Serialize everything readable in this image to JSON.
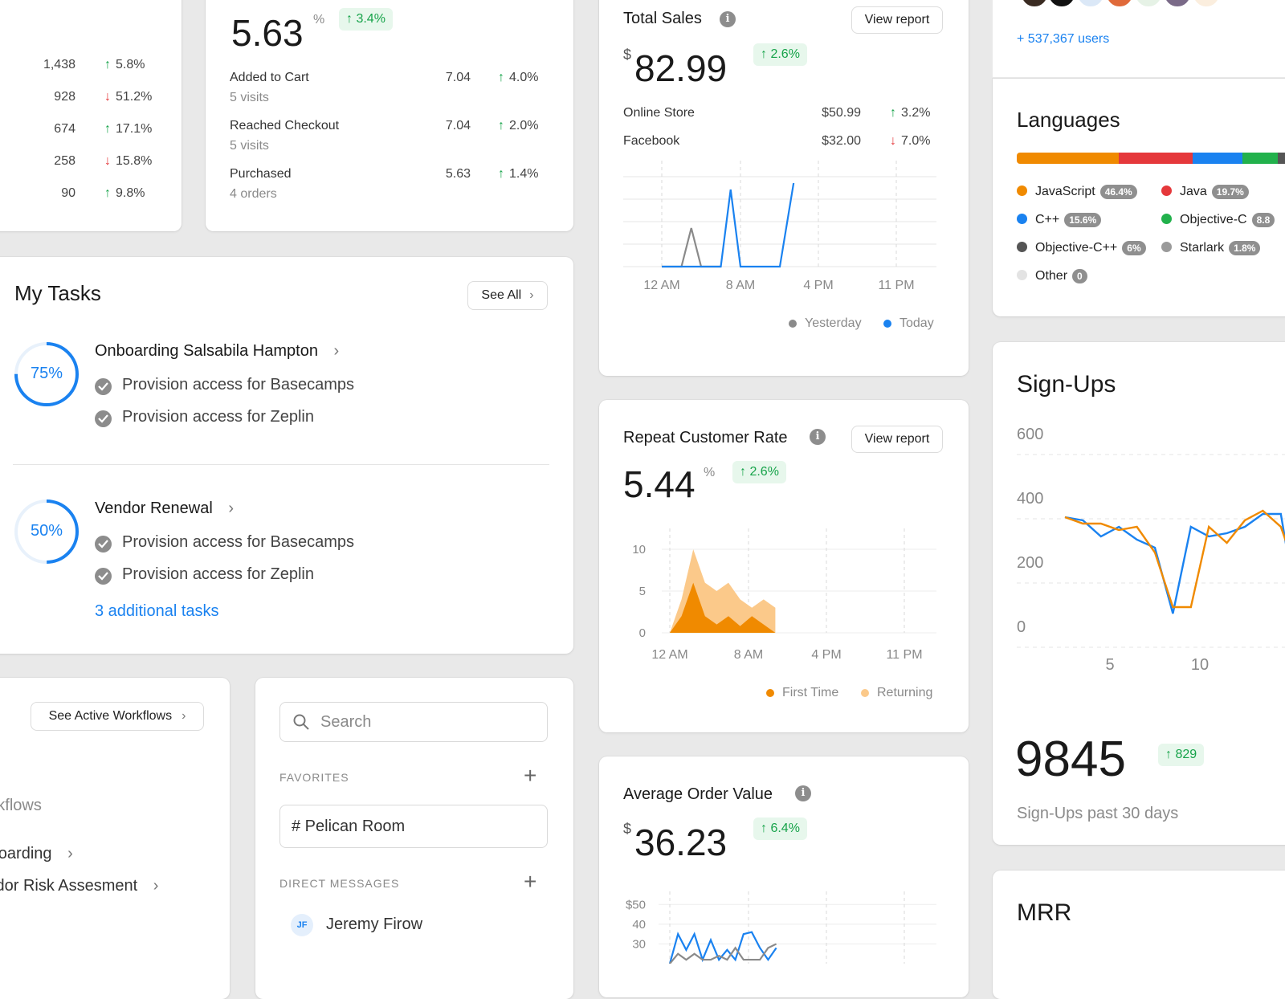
{
  "metrics_card": {
    "rows": [
      {
        "value": "1,438",
        "change": "5.8%",
        "dir": "up"
      },
      {
        "value": "928",
        "change": "51.2%",
        "dir": "down"
      },
      {
        "value": "674",
        "change": "17.1%",
        "dir": "up"
      },
      {
        "value": "258",
        "change": "15.8%",
        "dir": "down"
      },
      {
        "value": "90",
        "change": "9.8%",
        "dir": "up"
      }
    ]
  },
  "conversion_card": {
    "value": "5.63",
    "unit": "%",
    "change": "3.4%",
    "rows": [
      {
        "label": "Added to Cart",
        "sub": "5 visits",
        "value": "7.04",
        "change": "4.0%"
      },
      {
        "label": "Reached Checkout",
        "sub": "5 visits",
        "value": "7.04",
        "change": "2.0%"
      },
      {
        "label": "Purchased",
        "sub": "4 orders",
        "value": "5.63",
        "change": "1.4%"
      }
    ]
  },
  "total_sales": {
    "title": "Total Sales",
    "view_report": "View report",
    "currency": "$",
    "value": "82.99",
    "change": "2.6%",
    "rows": [
      {
        "label": "Online Store",
        "value": "$50.99",
        "change": "3.2%",
        "dir": "up"
      },
      {
        "label": "Facebook",
        "value": "$32.00",
        "change": "7.0%",
        "dir": "down"
      }
    ],
    "legend": [
      "Yesterday",
      "Today"
    ]
  },
  "repeat_rate": {
    "title": "Repeat Customer Rate",
    "view_report": "View report",
    "value": "5.44",
    "unit": "%",
    "change": "2.6%",
    "legend": [
      "First Time",
      "Returning"
    ]
  },
  "avg_order": {
    "title": "Average Order Value",
    "currency": "$",
    "value": "36.23",
    "change": "6.4%"
  },
  "tasks": {
    "title": "My Tasks",
    "see_all": "See All",
    "groups": [
      {
        "progress": "75%",
        "title": "Onboarding Salsabila Hampton",
        "items": [
          "Provision access for Basecamps",
          "Provision access for Zeplin"
        ]
      },
      {
        "progress": "50%",
        "title": "Vendor Renewal",
        "items": [
          "Provision access for Basecamps",
          "Provision access for Zeplin"
        ]
      }
    ],
    "additional": "3 additional tasks"
  },
  "workflows": {
    "button": "See Active Workflows",
    "heading": "Workflows",
    "items": [
      "Onboarding",
      "Vendor Risk Assesment"
    ]
  },
  "sidebar": {
    "search_placeholder": "Search",
    "favorites_label": "FAVORITES",
    "favorite_channel": "# Pelican Room",
    "dm_label": "DIRECT MESSAGES",
    "dm_user_initials": "JF",
    "dm_user": "Jeremy Firow"
  },
  "users_card": {
    "link": "+ 537,367 users"
  },
  "languages": {
    "title": "Languages",
    "items": [
      {
        "name": "JavaScript",
        "pct": "46.4%",
        "color": "#f08a00"
      },
      {
        "name": "Java",
        "pct": "19.7%",
        "color": "#e5383b"
      },
      {
        "name": "C++",
        "pct": "15.6%",
        "color": "#1a82f0"
      },
      {
        "name": "Objective-C",
        "pct": "8.8",
        "color": "#22b14c"
      },
      {
        "name": "Objective-C++",
        "pct": "6%",
        "color": "#555555"
      },
      {
        "name": "Starlark",
        "pct": "1.8%",
        "color": "#9a9a9a"
      },
      {
        "name": "Other",
        "pct": "0",
        "color": "#e3e3e3"
      }
    ]
  },
  "signups": {
    "title": "Sign-Ups",
    "value": "9845",
    "change": "829",
    "caption": "Sign-Ups past 30 days"
  },
  "mrr": {
    "title": "MRR"
  },
  "chart_data": [
    {
      "type": "line",
      "name": "total_sales",
      "x_ticks": [
        "12 AM",
        "8 AM",
        "4 PM",
        "11 PM"
      ],
      "series": [
        {
          "name": "Yesterday",
          "color": "#8a8a8a",
          "points": [
            [
              0,
              0
            ],
            [
              1,
              0
            ],
            [
              1.5,
              3
            ],
            [
              2,
              0
            ],
            [
              3,
              0
            ]
          ]
        },
        {
          "name": "Today",
          "color": "#1a82f0",
          "points": [
            [
              0,
              0
            ],
            [
              1,
              0
            ],
            [
              3,
              0
            ],
            [
              3.5,
              6
            ],
            [
              4,
              0
            ],
            [
              6,
              0
            ],
            [
              6.7,
              6.5
            ]
          ]
        }
      ],
      "ylim": [
        0,
        7
      ],
      "xlim": [
        -1,
        13
      ]
    },
    {
      "type": "area",
      "name": "repeat_rate",
      "x_ticks": [
        "12 AM",
        "8 AM",
        "4 PM",
        "11 PM"
      ],
      "y_ticks": [
        "10",
        "5",
        "0"
      ],
      "ylim": [
        0,
        10
      ],
      "xlim": [
        0,
        23
      ],
      "series": [
        {
          "name": "Returning",
          "color": "#fbc98a",
          "values": [
            0,
            4,
            10,
            6,
            5,
            6,
            4,
            3,
            4,
            3
          ]
        },
        {
          "name": "First Time",
          "color": "#f08a00",
          "values": [
            0,
            2,
            6,
            2,
            1,
            2,
            0.8,
            2,
            1,
            0
          ]
        }
      ]
    },
    {
      "type": "line",
      "name": "avg_order",
      "y_ticks": [
        "$50",
        "40",
        "30"
      ],
      "ylim": [
        20,
        55
      ],
      "series": [
        {
          "name": "s1",
          "color": "#1a82f0",
          "values": [
            20,
            35,
            27,
            35,
            22,
            32,
            22,
            27,
            22,
            35,
            36,
            28,
            22,
            28
          ]
        },
        {
          "name": "s2",
          "color": "#8a8a8a",
          "values": [
            20,
            25,
            22,
            25,
            22,
            22,
            24,
            22,
            28,
            22,
            22,
            22,
            28,
            30
          ]
        }
      ]
    },
    {
      "type": "line",
      "name": "signups",
      "y_ticks": [
        "600",
        "400",
        "200",
        "0"
      ],
      "x_ticks": [
        "5",
        "10"
      ],
      "ylim": [
        0,
        600
      ],
      "xlim": [
        0,
        15
      ],
      "series": [
        {
          "name": "blue",
          "color": "#1a82f0",
          "values": [
            340,
            330,
            280,
            310,
            270,
            245,
            40,
            310,
            280,
            290,
            310,
            350,
            350,
            20,
            -10,
            370
          ]
        },
        {
          "name": "orange",
          "color": "#f08a00",
          "values": [
            340,
            320,
            320,
            300,
            310,
            230,
            60,
            60,
            310,
            260,
            330,
            360,
            310,
            150,
            10,
            290
          ]
        }
      ]
    }
  ]
}
